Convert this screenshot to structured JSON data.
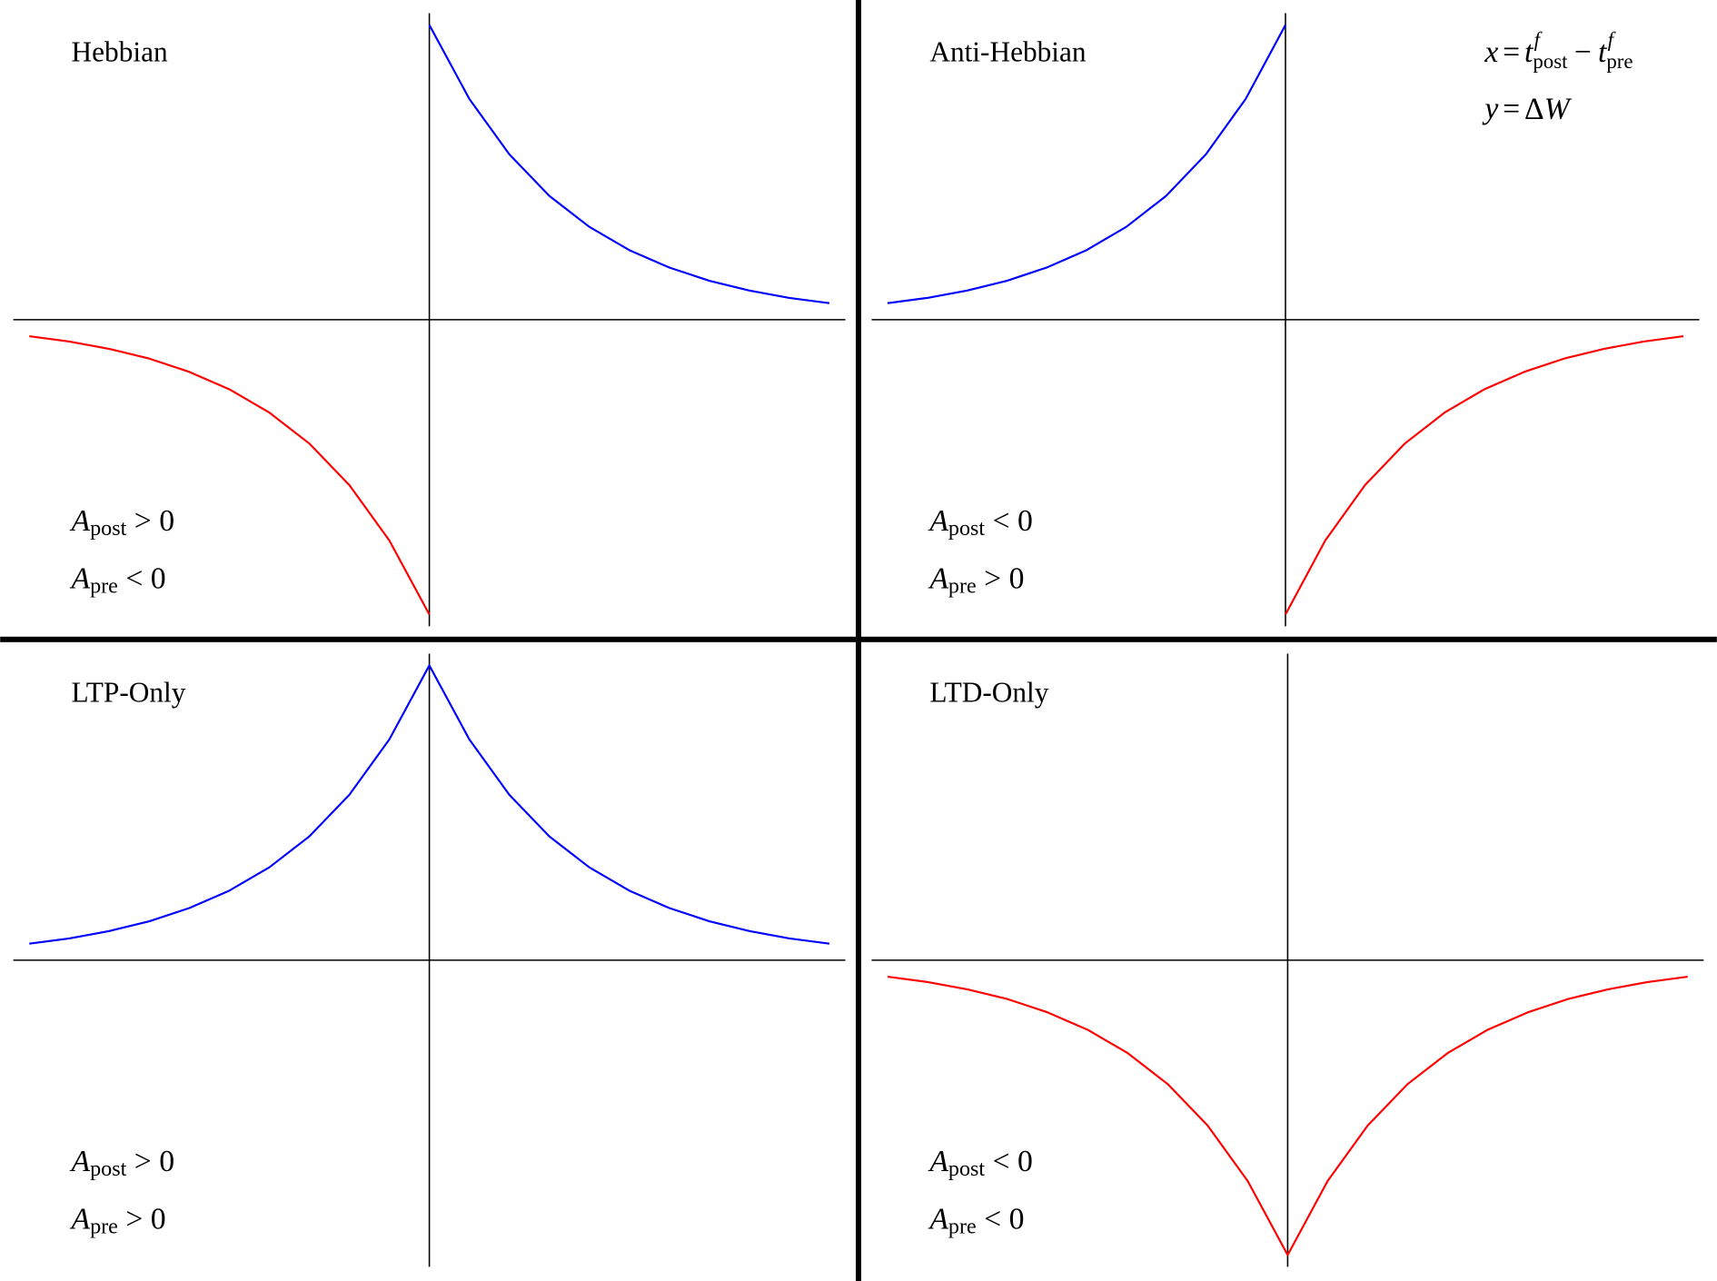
{
  "chart_data": [
    {
      "type": "line",
      "title": "Hebbian",
      "x": [
        -5,
        -4.5,
        -4,
        -3.5,
        -3,
        -2.5,
        -2,
        -1.5,
        -1,
        -0.5,
        0,
        0.5,
        1,
        1.5,
        2,
        2.5,
        3,
        3.5,
        4,
        4.5,
        5
      ],
      "xlim": [
        -5.2,
        5.2
      ],
      "ylim": [
        -1.04,
        1.04
      ],
      "series": [
        {
          "color": "#0000ff",
          "values": [
            null,
            null,
            null,
            null,
            null,
            null,
            null,
            null,
            null,
            null,
            1,
            0.749,
            0.561,
            0.42,
            0.315,
            0.236,
            0.177,
            0.132,
            0.099,
            0.074,
            0.056
          ]
        },
        {
          "color": "#ff0000",
          "values": [
            -0.056,
            -0.074,
            -0.099,
            -0.132,
            -0.177,
            -0.236,
            -0.315,
            -0.42,
            -0.561,
            -0.749,
            -1,
            null,
            null,
            null,
            null,
            null,
            null,
            null,
            null,
            null,
            null
          ]
        }
      ],
      "conditions": [
        {
          "symbol": "A",
          "subscript": "post",
          "relation": ">",
          "value": 0
        },
        {
          "symbol": "A",
          "subscript": "pre",
          "relation": "<",
          "value": 0
        }
      ]
    },
    {
      "type": "line",
      "title": "Anti-Hebbian",
      "x": [
        -5,
        -4.5,
        -4,
        -3.5,
        -3,
        -2.5,
        -2,
        -1.5,
        -1,
        -0.5,
        0,
        0.5,
        1,
        1.5,
        2,
        2.5,
        3,
        3.5,
        4,
        4.5,
        5
      ],
      "xlim": [
        -5.2,
        5.2
      ],
      "ylim": [
        -1.04,
        1.04
      ],
      "series": [
        {
          "color": "#0000ff",
          "values": [
            0.056,
            0.074,
            0.099,
            0.132,
            0.177,
            0.236,
            0.315,
            0.42,
            0.561,
            0.749,
            1,
            null,
            null,
            null,
            null,
            null,
            null,
            null,
            null,
            null,
            null
          ]
        },
        {
          "color": "#ff0000",
          "values": [
            null,
            null,
            null,
            null,
            null,
            null,
            null,
            null,
            null,
            null,
            -1,
            -0.749,
            -0.561,
            -0.42,
            -0.315,
            -0.236,
            -0.177,
            -0.132,
            -0.099,
            -0.074,
            -0.056
          ]
        }
      ],
      "conditions": [
        {
          "symbol": "A",
          "subscript": "post",
          "relation": "<",
          "value": 0
        },
        {
          "symbol": "A",
          "subscript": "pre",
          "relation": ">",
          "value": 0
        }
      ],
      "equations": [
        {
          "lhs": "x",
          "relation": "=",
          "terms": [
            {
              "base": "t",
              "sup": "f",
              "sub": "post"
            },
            {
              "op": "−"
            },
            {
              "base": "t",
              "sup": "f",
              "sub": "pre"
            }
          ]
        },
        {
          "lhs": "y",
          "relation": "=",
          "terms": [
            {
              "op": "Δ",
              "base": "W"
            }
          ]
        }
      ]
    },
    {
      "type": "line",
      "title": "LTP-Only",
      "x": [
        -5,
        -4.5,
        -4,
        -3.5,
        -3,
        -2.5,
        -2,
        -1.5,
        -1,
        -0.5,
        0,
        0.5,
        1,
        1.5,
        2,
        2.5,
        3,
        3.5,
        4,
        4.5,
        5
      ],
      "xlim": [
        -5.2,
        5.2
      ],
      "ylim": [
        -1.04,
        1.04
      ],
      "series": [
        {
          "color": "#0000ff",
          "values": [
            0.056,
            0.074,
            0.099,
            0.132,
            0.177,
            0.236,
            0.315,
            0.42,
            0.561,
            0.749,
            1,
            0.749,
            0.561,
            0.42,
            0.315,
            0.236,
            0.177,
            0.132,
            0.099,
            0.074,
            0.056
          ]
        }
      ],
      "conditions": [
        {
          "symbol": "A",
          "subscript": "post",
          "relation": ">",
          "value": 0
        },
        {
          "symbol": "A",
          "subscript": "pre",
          "relation": ">",
          "value": 0
        }
      ]
    },
    {
      "type": "line",
      "title": "LTD-Only",
      "x": [
        -5,
        -4.5,
        -4,
        -3.5,
        -3,
        -2.5,
        -2,
        -1.5,
        -1,
        -0.5,
        0,
        0.5,
        1,
        1.5,
        2,
        2.5,
        3,
        3.5,
        4,
        4.5,
        5
      ],
      "xlim": [
        -5.2,
        5.2
      ],
      "ylim": [
        -1.04,
        1.04
      ],
      "series": [
        {
          "color": "#ff0000",
          "values": [
            -0.056,
            -0.074,
            -0.099,
            -0.132,
            -0.177,
            -0.236,
            -0.315,
            -0.42,
            -0.561,
            -0.749,
            -1,
            -0.749,
            -0.561,
            -0.42,
            -0.315,
            -0.236,
            -0.177,
            -0.132,
            -0.099,
            -0.074,
            -0.056
          ]
        }
      ],
      "conditions": [
        {
          "symbol": "A",
          "subscript": "post",
          "relation": "<",
          "value": 0
        },
        {
          "symbol": "A",
          "subscript": "pre",
          "relation": "<",
          "value": 0
        }
      ]
    }
  ]
}
